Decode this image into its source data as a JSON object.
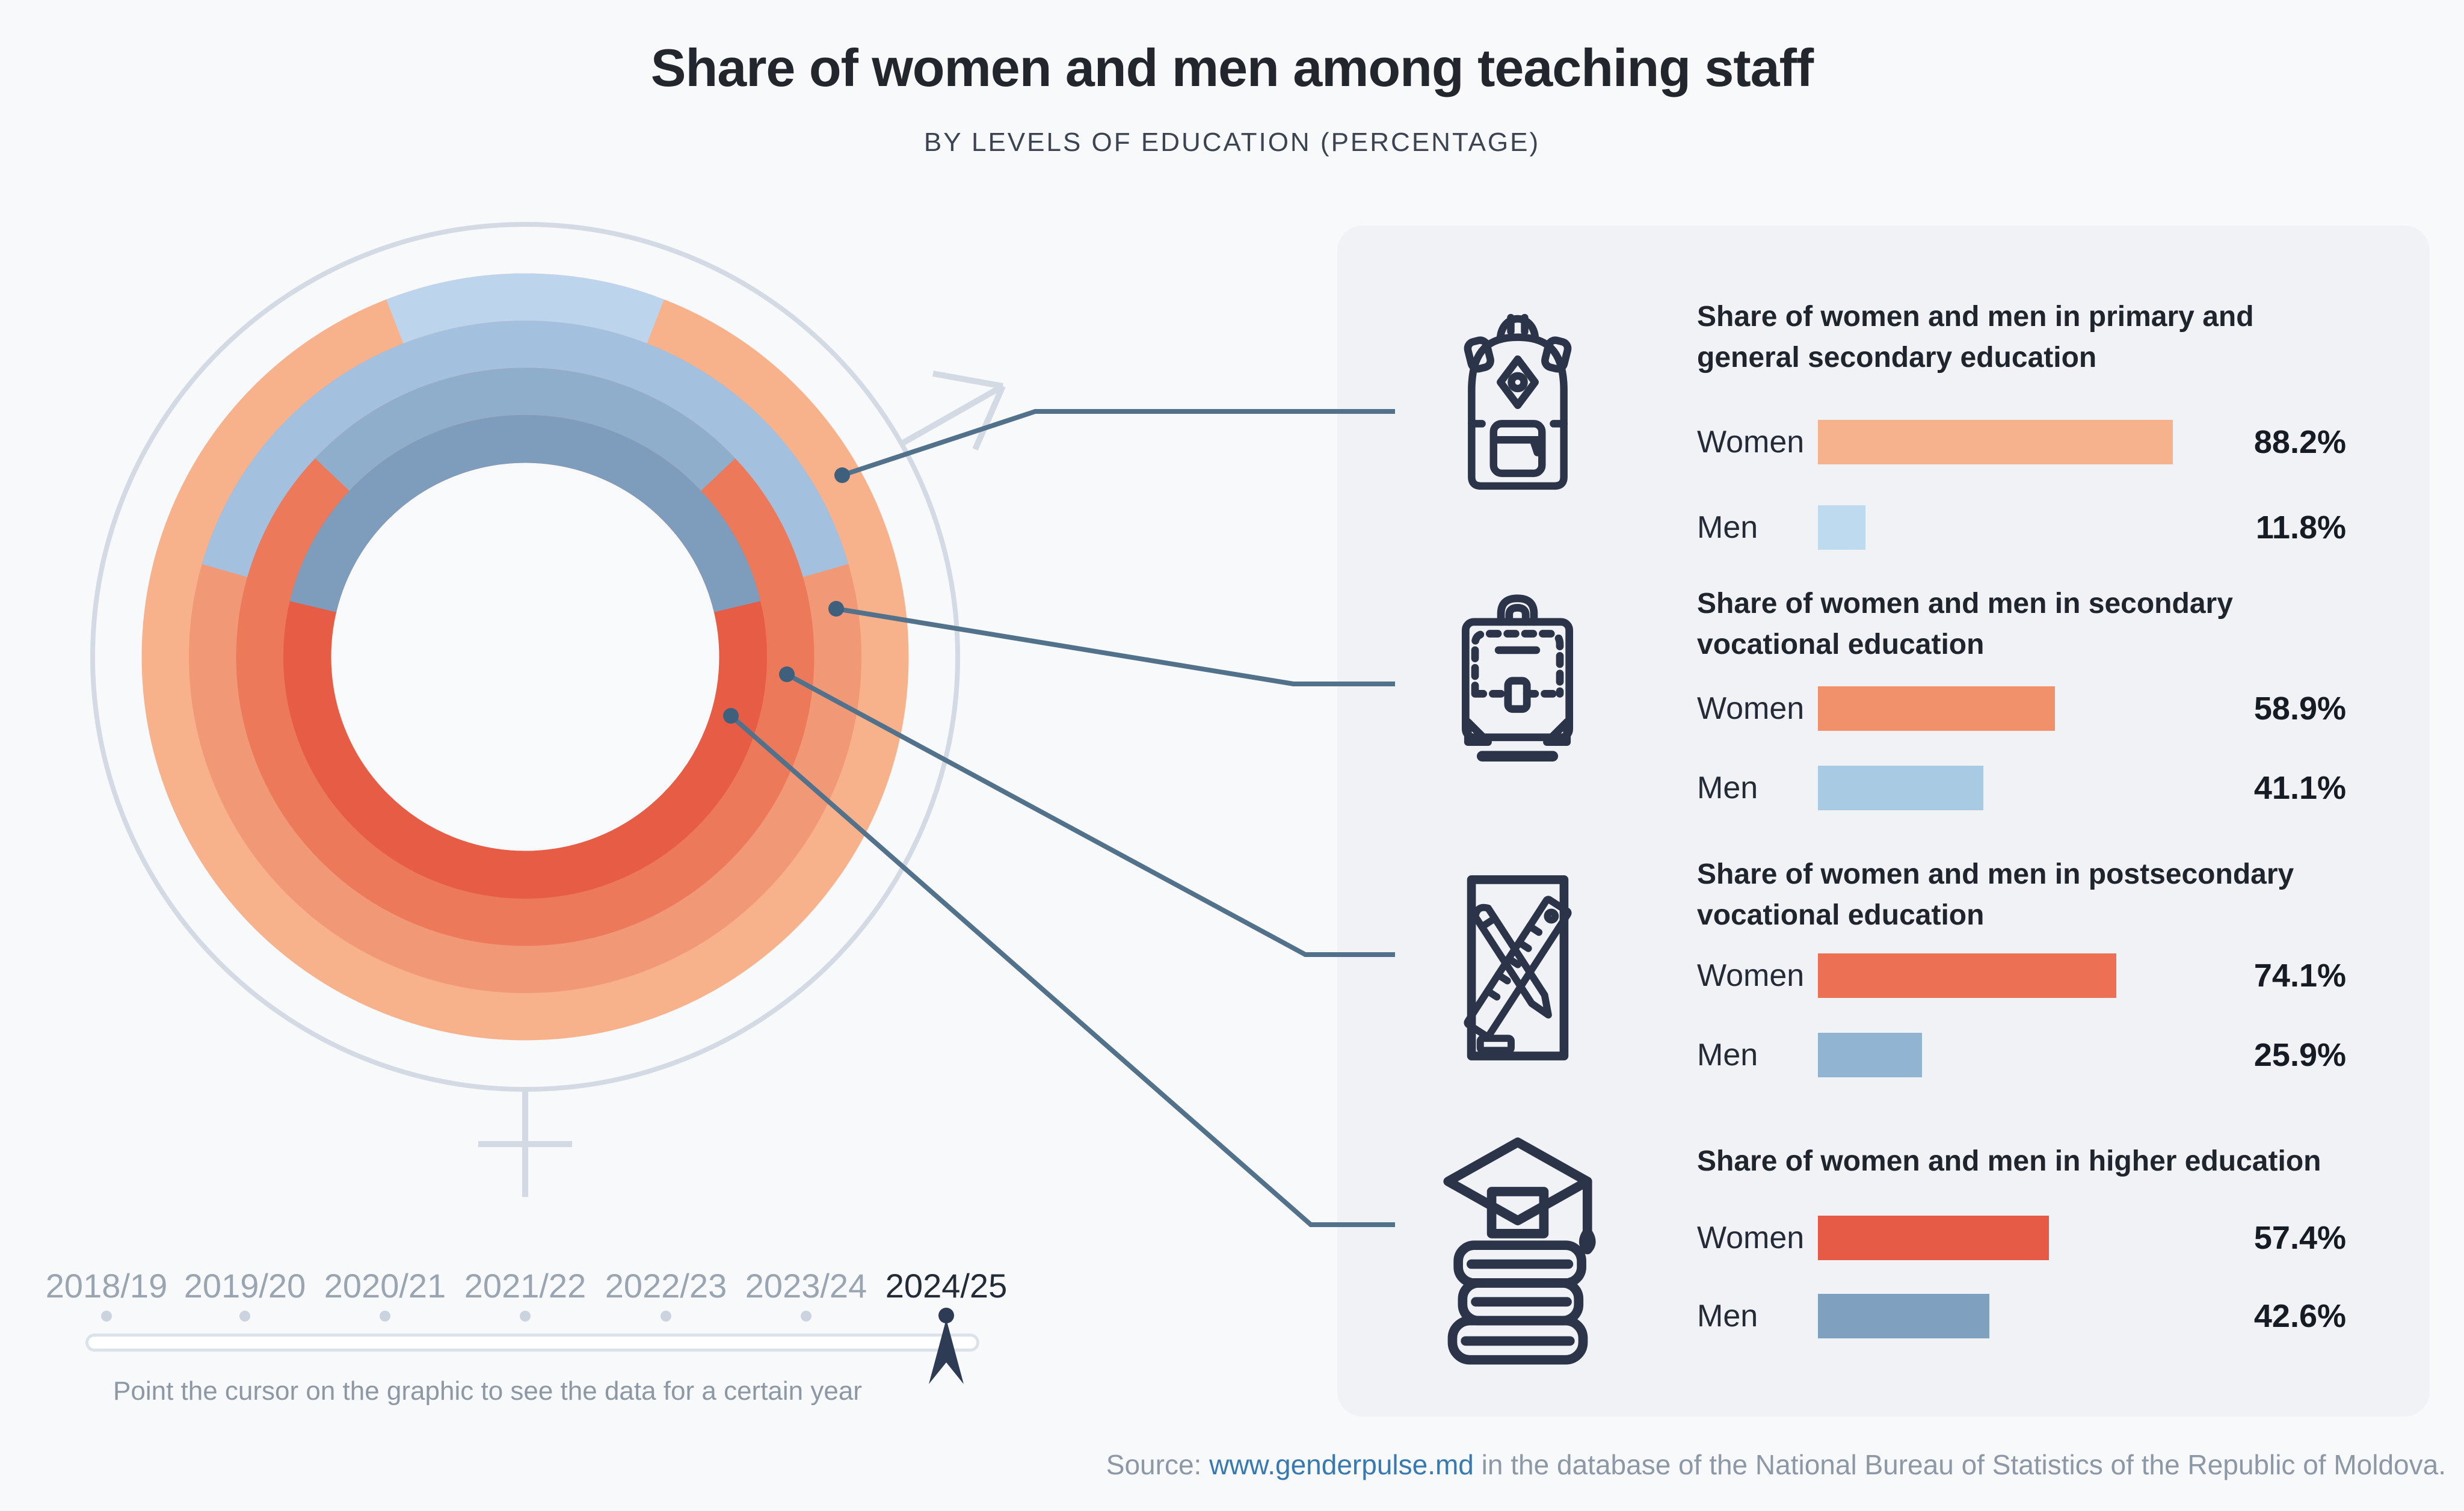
{
  "header": {
    "title": "Share of women and men among teaching staff",
    "subtitle": "BY LEVELS OF EDUCATION (PERCENTAGE)"
  },
  "chart_data": {
    "type": "donut-rings",
    "title": "Share of women and men among teaching staff by levels of education",
    "unit": "percent",
    "year_shown": "2024/25",
    "center_symbolism": "female gender symbol around donut, male arrow at upper right",
    "rings_outer_to_inner": [
      {
        "level": "Primary and general secondary education",
        "women": 88.2,
        "men": 11.8,
        "women_color": "#F7B28C",
        "men_color": "#BDD5EC"
      },
      {
        "level": "Secondary vocational education",
        "women": 58.9,
        "men": 41.1,
        "women_color": "#F19877",
        "men_color": "#A3C0DE"
      },
      {
        "level": "Postsecondary vocational education",
        "women": 74.1,
        "men": 25.9,
        "women_color": "#EC7A5A",
        "men_color": "#8EAECC"
      },
      {
        "level": "Higher education",
        "women": 57.4,
        "men": 42.6,
        "women_color": "#E65C45",
        "men_color": "#7E9DBC"
      }
    ],
    "men_segments_centered_at": "top (12 o'clock)"
  },
  "panels": [
    {
      "icon": "backpack-icon",
      "title": "Share of women and men in primary and general secondary education",
      "women_label": "Women",
      "men_label": "Men",
      "women_pct": 88.2,
      "men_pct": 11.8,
      "women_value": "88.2%",
      "men_value": "11.8%",
      "women_color": "#F6B28D",
      "men_color": "#BEDAEF"
    },
    {
      "icon": "briefcase-icon",
      "title": "Share of women and men in secondary vocational education",
      "women_label": "Women",
      "men_label": "Men",
      "women_pct": 58.9,
      "men_pct": 41.1,
      "women_value": "58.9%",
      "men_value": "41.1%",
      "women_color": "#F0916C",
      "men_color": "#A9CAE3"
    },
    {
      "icon": "pencil-ruler-icon",
      "title": "Share of women and men in postsecondary vocational education",
      "women_label": "Women",
      "men_label": "Men",
      "women_pct": 74.1,
      "men_pct": 25.9,
      "women_value": "74.1%",
      "men_value": "25.9%",
      "women_color": "#EC7053",
      "men_color": "#90B4D1"
    },
    {
      "icon": "graduation-books-icon",
      "title": "Share of women and men in higher education",
      "women_label": "Women",
      "men_label": "Men",
      "women_pct": 57.4,
      "men_pct": 42.6,
      "women_value": "57.4%",
      "men_value": "42.6%",
      "women_color": "#E55B45",
      "men_color": "#7FA1BF"
    }
  ],
  "timeline": {
    "years": [
      "2018/19",
      "2019/20",
      "2020/21",
      "2021/22",
      "2022/23",
      "2023/24",
      "2024/25"
    ],
    "active_index": 6,
    "active_year": "2024/25",
    "hint": "Point the cursor on the graphic to see the data for a certain year"
  },
  "source": {
    "prefix": "Source: ",
    "link": "www.genderpulse.md",
    "suffix": " in the database of the National Bureau of Statistics of the Republic of Moldova."
  },
  "colors": {
    "page_background": "#F8F9FB",
    "panel_background": "#F0F2F6",
    "gender_symbol": "#D3DAE3",
    "connector": "#52718B",
    "connector_dot": "#3F607C",
    "active_timeline": "#2E3B55",
    "link_blue": "#3779B0"
  }
}
